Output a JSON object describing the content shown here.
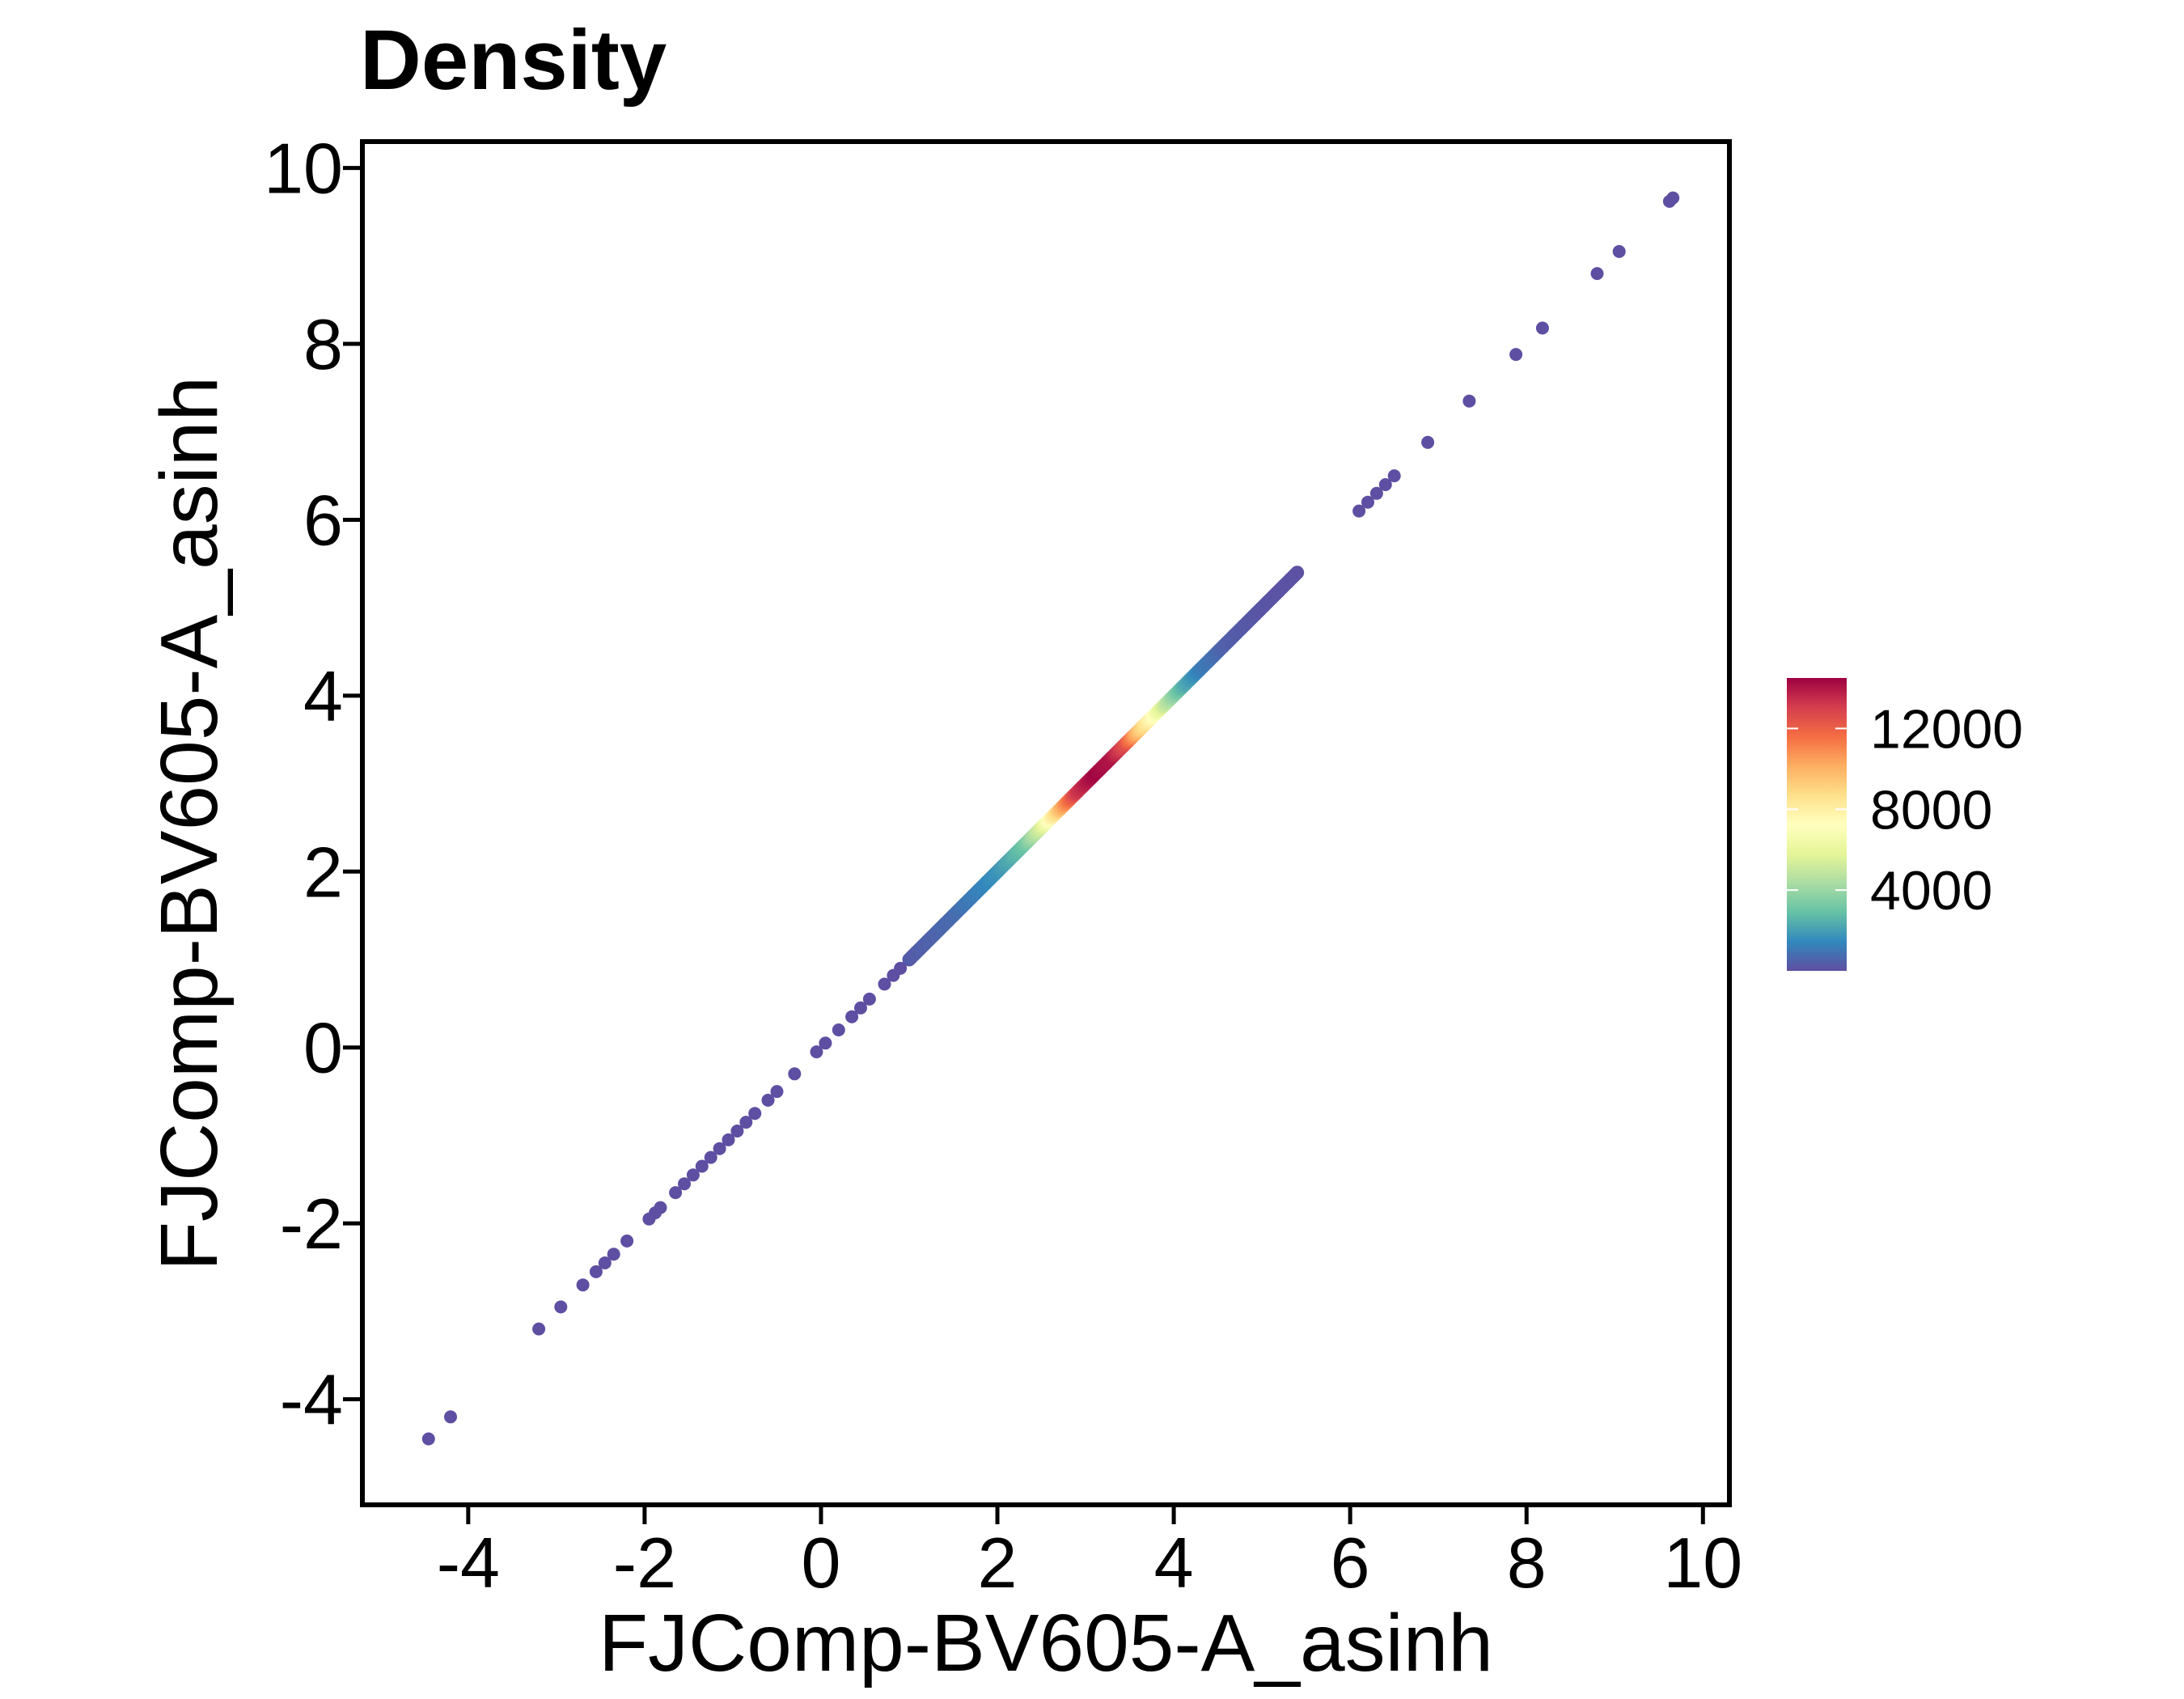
{
  "chart_data": {
    "type": "scatter",
    "title": "Density",
    "xlabel": "FJComp-BV605-A_asinh",
    "ylabel": "FJComp-BV605-A_asinh",
    "xlim": [
      -5.2,
      10.3
    ],
    "ylim": [
      -5.2,
      10.3
    ],
    "x_ticks": [
      -4,
      -2,
      0,
      2,
      4,
      6,
      8,
      10
    ],
    "y_ticks": [
      -4,
      -2,
      0,
      2,
      4,
      6,
      8,
      10
    ],
    "grid": false,
    "legend": {
      "title": "",
      "placement": "right",
      "type": "colorbar",
      "range": [
        0,
        14500
      ],
      "ticks": [
        4000,
        8000,
        12000
      ],
      "palette": "Spectral",
      "colors": [
        "#5E4FA2",
        "#3288BD",
        "#66C2A5",
        "#ABDDA4",
        "#E6F598",
        "#FFFFBF",
        "#FEE08B",
        "#FDAE61",
        "#F46D43",
        "#D53E4F",
        "#9E0142"
      ]
    },
    "point_color_low": "#5E4FA2",
    "points": [
      {
        "x": -4.45,
        "y": -4.45
      },
      {
        "x": -4.2,
        "y": -4.2
      },
      {
        "x": -3.2,
        "y": -3.2
      },
      {
        "x": -2.95,
        "y": -2.95
      },
      {
        "x": -2.7,
        "y": -2.7
      },
      {
        "x": -2.55,
        "y": -2.55
      },
      {
        "x": -2.45,
        "y": -2.45
      },
      {
        "x": -2.35,
        "y": -2.35
      },
      {
        "x": -2.2,
        "y": -2.2
      },
      {
        "x": -1.95,
        "y": -1.95
      },
      {
        "x": -1.88,
        "y": -1.88
      },
      {
        "x": -1.82,
        "y": -1.82
      },
      {
        "x": -1.65,
        "y": -1.65
      },
      {
        "x": -1.55,
        "y": -1.55
      },
      {
        "x": -1.45,
        "y": -1.45
      },
      {
        "x": -1.35,
        "y": -1.35
      },
      {
        "x": -1.25,
        "y": -1.25
      },
      {
        "x": -1.15,
        "y": -1.15
      },
      {
        "x": -1.05,
        "y": -1.05
      },
      {
        "x": -0.95,
        "y": -0.95
      },
      {
        "x": -0.85,
        "y": -0.85
      },
      {
        "x": -0.75,
        "y": -0.75
      },
      {
        "x": -0.6,
        "y": -0.6
      },
      {
        "x": -0.5,
        "y": -0.5
      },
      {
        "x": -0.3,
        "y": -0.3
      },
      {
        "x": -0.05,
        "y": -0.05
      },
      {
        "x": 0.05,
        "y": 0.05
      },
      {
        "x": 0.2,
        "y": 0.2
      },
      {
        "x": 0.35,
        "y": 0.35
      },
      {
        "x": 0.45,
        "y": 0.45
      },
      {
        "x": 0.55,
        "y": 0.55
      },
      {
        "x": 0.72,
        "y": 0.72
      },
      {
        "x": 0.82,
        "y": 0.82
      },
      {
        "x": 0.9,
        "y": 0.9
      },
      {
        "x": 6.1,
        "y": 6.1
      },
      {
        "x": 6.2,
        "y": 6.2
      },
      {
        "x": 6.3,
        "y": 6.3
      },
      {
        "x": 6.4,
        "y": 6.4
      },
      {
        "x": 6.5,
        "y": 6.5
      },
      {
        "x": 6.88,
        "y": 6.88
      },
      {
        "x": 7.35,
        "y": 7.35
      },
      {
        "x": 7.88,
        "y": 7.88
      },
      {
        "x": 8.18,
        "y": 8.18
      },
      {
        "x": 8.8,
        "y": 8.8
      },
      {
        "x": 9.05,
        "y": 9.05
      },
      {
        "x": 9.62,
        "y": 9.62
      },
      {
        "x": 9.66,
        "y": 9.66
      }
    ],
    "dense_band": [
      {
        "x": 1.0,
        "density": 300
      },
      {
        "x": 1.5,
        "density": 700
      },
      {
        "x": 2.0,
        "density": 1700
      },
      {
        "x": 2.3,
        "density": 3000
      },
      {
        "x": 2.5,
        "density": 5500
      },
      {
        "x": 2.6,
        "density": 7600
      },
      {
        "x": 2.75,
        "density": 10500
      },
      {
        "x": 2.9,
        "density": 13200
      },
      {
        "x": 3.1,
        "density": 14400
      },
      {
        "x": 3.3,
        "density": 14000
      },
      {
        "x": 3.45,
        "density": 12500
      },
      {
        "x": 3.6,
        "density": 9500
      },
      {
        "x": 3.75,
        "density": 7500
      },
      {
        "x": 3.9,
        "density": 5000
      },
      {
        "x": 4.1,
        "density": 2500
      },
      {
        "x": 4.3,
        "density": 1200
      },
      {
        "x": 4.6,
        "density": 400
      },
      {
        "x": 5.0,
        "density": 150
      },
      {
        "x": 5.4,
        "density": 60
      }
    ]
  }
}
